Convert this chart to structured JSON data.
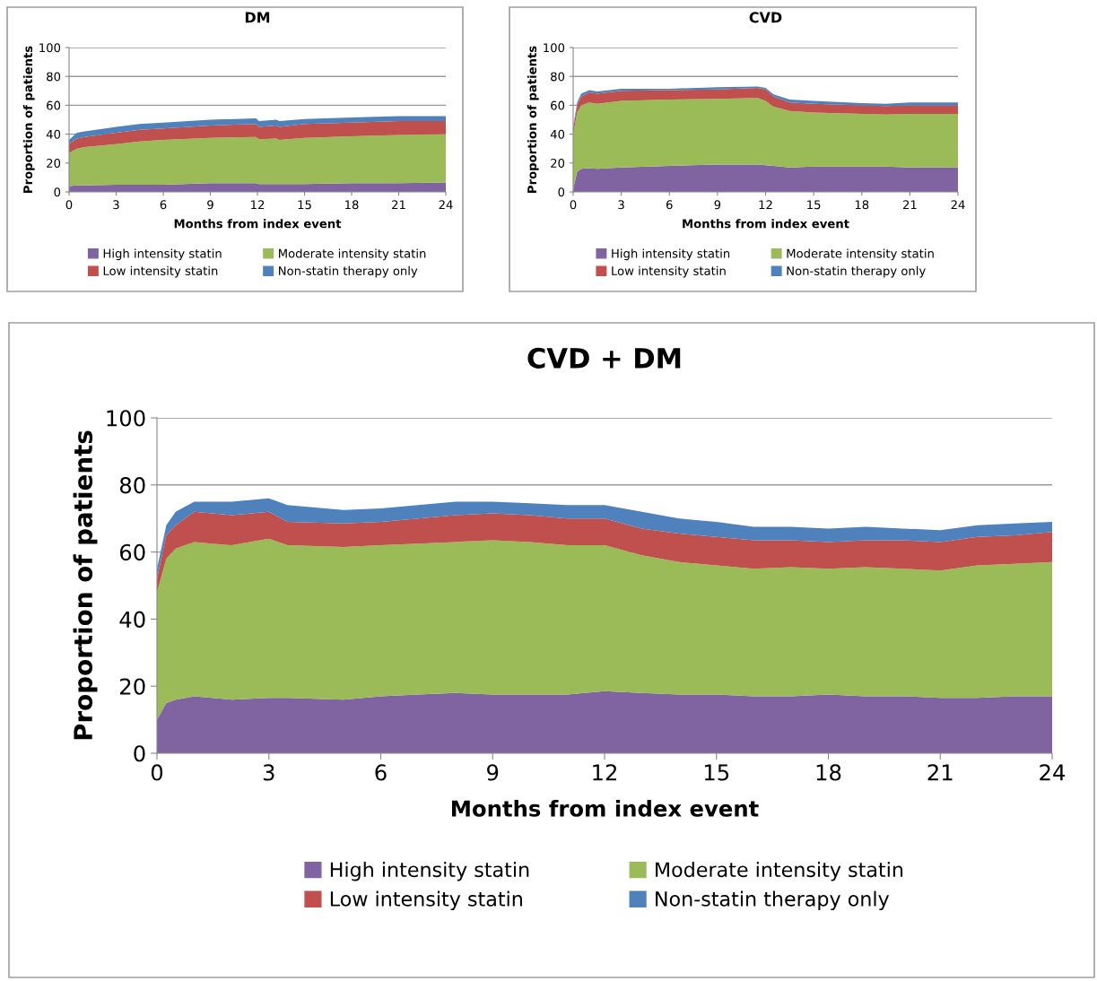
{
  "chart_data": [
    {
      "type": "area",
      "stacked": true,
      "title": "DM",
      "xlabel": "Months from index event",
      "ylabel": "Proportion of patients",
      "xlim": [
        0,
        24
      ],
      "xticks": [
        0,
        3,
        6,
        9,
        12,
        15,
        18,
        21,
        24
      ],
      "ylim": [
        0,
        100
      ],
      "yticks": [
        0,
        20,
        40,
        60,
        80,
        100
      ],
      "grid": "y",
      "legend": "bottom",
      "x": [
        0,
        0.5,
        1,
        3,
        4.5,
        6,
        9,
        11.9,
        12.1,
        13.2,
        13.4,
        15,
        18,
        21,
        24
      ],
      "series": [
        {
          "name": "High intensity statin",
          "color": "#8064a2",
          "values": [
            4,
            4.5,
            4.5,
            5,
            5,
            5,
            6,
            6,
            5.5,
            5.5,
            5.5,
            5.5,
            6,
            6,
            6.5
          ]
        },
        {
          "name": "Moderate intensity statin",
          "color": "#9bbb59",
          "values": [
            23,
            25.5,
            26.5,
            28,
            30,
            31,
            31.5,
            32,
            31,
            31.5,
            30.5,
            32,
            32.5,
            33.5,
            33.5
          ]
        },
        {
          "name": "Low intensity statin",
          "color": "#c0504d",
          "values": [
            6,
            7,
            7,
            8,
            8,
            8,
            8.5,
            9,
            8.5,
            9,
            9,
            9.5,
            9.5,
            9.5,
            9
          ]
        },
        {
          "name": "Non-statin therapy only",
          "color": "#4f81bd",
          "values": [
            3,
            4,
            4,
            4,
            4,
            4,
            4,
            4,
            4,
            4,
            4,
            3.5,
            3.5,
            3.5,
            3.5
          ]
        }
      ]
    },
    {
      "type": "area",
      "stacked": true,
      "title": "CVD",
      "xlabel": "Months from index event",
      "ylabel": "Proportion of patients",
      "xlim": [
        0,
        24
      ],
      "xticks": [
        0,
        3,
        6,
        9,
        12,
        15,
        18,
        21,
        24
      ],
      "ylim": [
        0,
        100
      ],
      "yticks": [
        0,
        20,
        40,
        60,
        80,
        100
      ],
      "grid": "y",
      "legend": "bottom",
      "x": [
        0,
        0.25,
        0.5,
        1,
        1.5,
        3,
        6,
        9,
        11.5,
        12,
        12.5,
        13.5,
        15,
        18,
        19.5,
        21,
        24
      ],
      "series": [
        {
          "name": "High intensity statin",
          "color": "#8064a2",
          "values": [
            2,
            14,
            16,
            16.5,
            16,
            17,
            18,
            19,
            19,
            18.5,
            18,
            17,
            17.5,
            17.5,
            17.5,
            17,
            17
          ]
        },
        {
          "name": "Moderate intensity statin",
          "color": "#9bbb59",
          "values": [
            38,
            41,
            44,
            45.5,
            45,
            46,
            46,
            45.5,
            46,
            44.5,
            41,
            39,
            37.5,
            36.5,
            36,
            37,
            37
          ]
        },
        {
          "name": "Low intensity statin",
          "color": "#c0504d",
          "values": [
            4,
            5,
            6,
            7,
            7,
            7,
            6.5,
            6.5,
            7,
            8,
            7,
            6,
            6,
            6,
            6,
            6,
            6
          ]
        },
        {
          "name": "Non-statin therapy only",
          "color": "#4f81bd",
          "values": [
            1,
            2,
            2,
            1.5,
            1.5,
            1.5,
            1,
            1.5,
            1,
            1,
            1.5,
            2,
            2,
            1.5,
            1.5,
            2,
            2
          ]
        }
      ]
    },
    {
      "type": "area",
      "stacked": true,
      "title": "CVD + DM",
      "xlabel": "Months from index event",
      "ylabel": "Proportion of patients",
      "xlim": [
        0,
        24
      ],
      "xticks": [
        0,
        3,
        6,
        9,
        12,
        15,
        18,
        21,
        24
      ],
      "ylim": [
        0,
        100
      ],
      "yticks": [
        0,
        20,
        40,
        60,
        80,
        100
      ],
      "grid": "y",
      "legend": "bottom",
      "x": [
        0,
        0.25,
        0.5,
        1,
        2,
        3,
        3.5,
        5,
        6,
        7,
        8,
        9,
        10,
        11,
        12,
        13,
        14,
        15,
        16,
        17,
        18,
        19,
        20,
        21,
        22,
        23,
        24
      ],
      "series": [
        {
          "name": "High intensity statin",
          "color": "#8064a2",
          "values": [
            10,
            15,
            16,
            17,
            16,
            16.5,
            16.5,
            16,
            17,
            17.5,
            18,
            17.5,
            17.5,
            17.5,
            18.5,
            18,
            17.5,
            17.5,
            17,
            17,
            17.5,
            17,
            17,
            16.5,
            16.5,
            17,
            17
          ]
        },
        {
          "name": "Moderate intensity statin",
          "color": "#9bbb59",
          "values": [
            38,
            43,
            45,
            46,
            46,
            47.5,
            45.5,
            45.5,
            45,
            45,
            45,
            46,
            45.5,
            44.5,
            43.5,
            41,
            39.5,
            38.5,
            38,
            38.5,
            37.5,
            38.5,
            38,
            38,
            39.5,
            39.5,
            40
          ]
        },
        {
          "name": "Low intensity statin",
          "color": "#c0504d",
          "values": [
            4,
            7,
            7,
            9,
            9,
            8,
            7,
            7,
            7,
            7.5,
            8,
            8,
            8,
            8,
            8,
            8,
            8.5,
            8.5,
            8.5,
            8,
            8,
            8,
            8.5,
            8.5,
            8.5,
            8.5,
            9
          ]
        },
        {
          "name": "Non-statin therapy only",
          "color": "#4f81bd",
          "values": [
            3,
            3,
            4,
            3,
            4,
            4,
            5,
            4,
            4,
            4,
            4,
            3.5,
            3.5,
            4,
            4,
            5,
            4.5,
            4.5,
            4,
            4,
            4,
            4,
            3.5,
            3.5,
            3.5,
            3.5,
            3
          ]
        }
      ]
    }
  ]
}
